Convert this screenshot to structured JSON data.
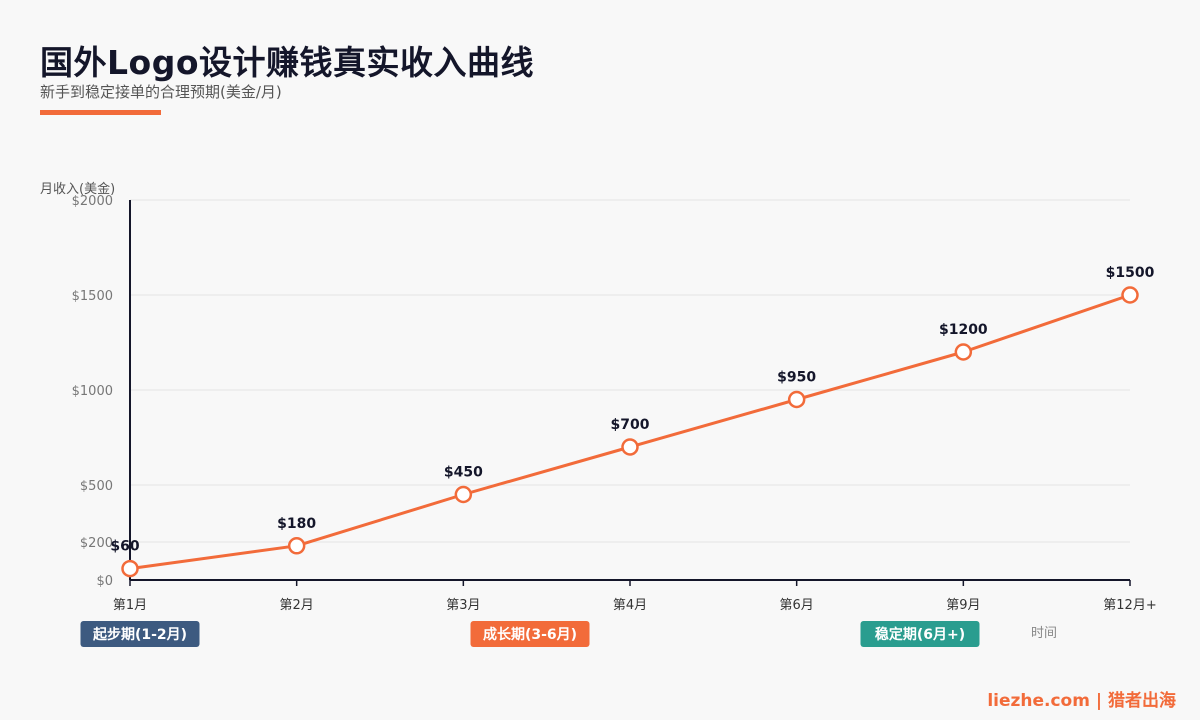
{
  "header": {
    "title": "国外Logo设计赚钱真实收入曲线",
    "subtitle": "新手到稳定接单的合理预期(美金/月)"
  },
  "footer": {
    "text": "liezhe.com | 猎者出海"
  },
  "colors": {
    "line": "#f26b3a",
    "axis": "#14162a",
    "grid": "#e3e3e3",
    "phase_start": "#3d5a80",
    "phase_growth": "#f26b3a",
    "phase_stable": "#2a9d8f"
  },
  "chart_data": {
    "type": "line",
    "categories": [
      "第1月",
      "第2月",
      "第3月",
      "第4月",
      "第6月",
      "第9月",
      "第12月+"
    ],
    "values": [
      60,
      180,
      450,
      700,
      950,
      1200,
      1500
    ],
    "data_labels": [
      "$60",
      "$180",
      "$450",
      "$700",
      "$950",
      "$1200",
      "$1500"
    ],
    "title": "国外Logo设计赚钱真实收入曲线",
    "subtitle": "新手到稳定接单的合理预期(美金/月)",
    "ylabel": "月收入(美金)",
    "xlabel": "时间",
    "ylim": [
      0,
      2000
    ],
    "yticks": [
      0,
      200,
      500,
      1000,
      1500,
      2000
    ],
    "ytick_labels": [
      "$0",
      "$200",
      "$500",
      "$1000",
      "$1500",
      "$2000"
    ],
    "grid": true,
    "legend": "none",
    "phases": [
      {
        "label": "起步期(1-2月)",
        "color": "#3d5a80"
      },
      {
        "label": "成长期(3-6月)",
        "color": "#f26b3a"
      },
      {
        "label": "稳定期(6月+)",
        "color": "#2a9d8f"
      }
    ]
  }
}
